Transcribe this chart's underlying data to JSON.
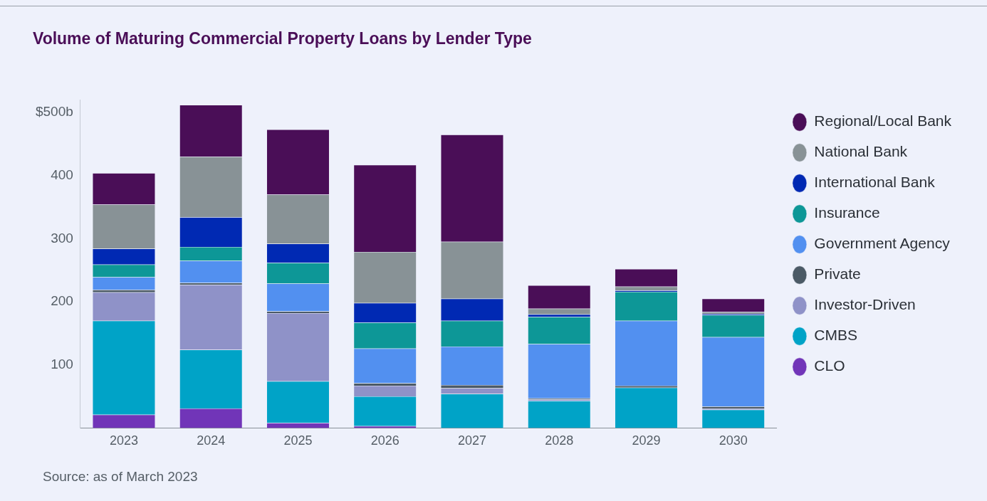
{
  "chart_data": {
    "type": "bar",
    "title": "Volume of Maturing Commercial Property Loans by Lender Type",
    "stacked": true,
    "legend": "right",
    "marker": "circle",
    "grid": false,
    "categories": [
      "2023",
      "2024",
      "2025",
      "2026",
      "2027",
      "2028",
      "2029",
      "2030"
    ],
    "ylim": [
      0,
      520
    ],
    "yticks": [
      100,
      200,
      300,
      400,
      {
        "value": 500,
        "label": "$500b"
      }
    ],
    "series": [
      {
        "name": "CLO",
        "color": "#7135b8",
        "values": [
          21,
          31,
          8,
          3,
          0,
          0,
          0,
          0
        ]
      },
      {
        "name": "CMBS",
        "color": "#00a3c7",
        "values": [
          149,
          93,
          66,
          47,
          54,
          43,
          64,
          29
        ]
      },
      {
        "name": "Investor-Driven",
        "color": "#8f92c8",
        "values": [
          45,
          103,
          108,
          17,
          9,
          2,
          null,
          2
        ]
      },
      {
        "name": "Private",
        "color": "#4b5a66",
        "values": [
          4,
          3,
          3,
          4,
          5,
          2,
          3,
          3
        ]
      },
      {
        "name": "Government Agency",
        "color": "#5290f0",
        "values": [
          20,
          35,
          44,
          55,
          61,
          86,
          103,
          110
        ]
      },
      {
        "name": "Insurance",
        "color": "#0d9797",
        "values": [
          20,
          22,
          33,
          41,
          41,
          43,
          46,
          35
        ]
      },
      {
        "name": "International Bank",
        "color": "#0029b3",
        "values": [
          25,
          47,
          30,
          31,
          35,
          4,
          2,
          2
        ]
      },
      {
        "name": "National Bank",
        "color": "#889296",
        "values": [
          70,
          96,
          78,
          81,
          90,
          9,
          6,
          3
        ]
      },
      {
        "name": "Regional/Local Bank",
        "color": "#4a0e57",
        "values": [
          50,
          82,
          103,
          138,
          170,
          37,
          28,
          21
        ]
      }
    ],
    "annotations": [
      "Source: as of March 2023"
    ]
  }
}
